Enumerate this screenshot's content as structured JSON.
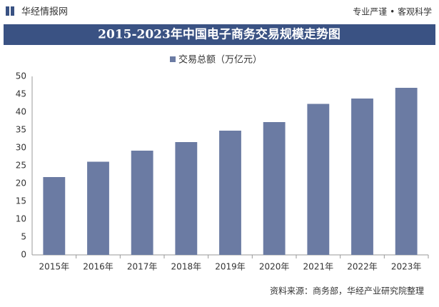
{
  "header": {
    "logo": "华经情报网",
    "slogan": "专业严谨 • 客观科学"
  },
  "chart_data": {
    "type": "bar",
    "title": "2015-2023年中国电子商务交易规模走势图",
    "categories": [
      "2015年",
      "2016年",
      "2017年",
      "2018年",
      "2019年",
      "2020年",
      "2021年",
      "2022年",
      "2023年"
    ],
    "series": [
      {
        "name": "交易总额（万亿元）",
        "color": "#6b7ba3",
        "values": [
          21.8,
          26.1,
          29.2,
          31.6,
          34.8,
          37.2,
          42.3,
          43.8,
          46.8
        ]
      }
    ],
    "ylim": [
      0,
      50
    ],
    "yticks": [
      0,
      5,
      10,
      15,
      20,
      25,
      30,
      35,
      40,
      45,
      50
    ],
    "grid": false,
    "source": "资料来源：商务部，华经产业研究院整理"
  }
}
